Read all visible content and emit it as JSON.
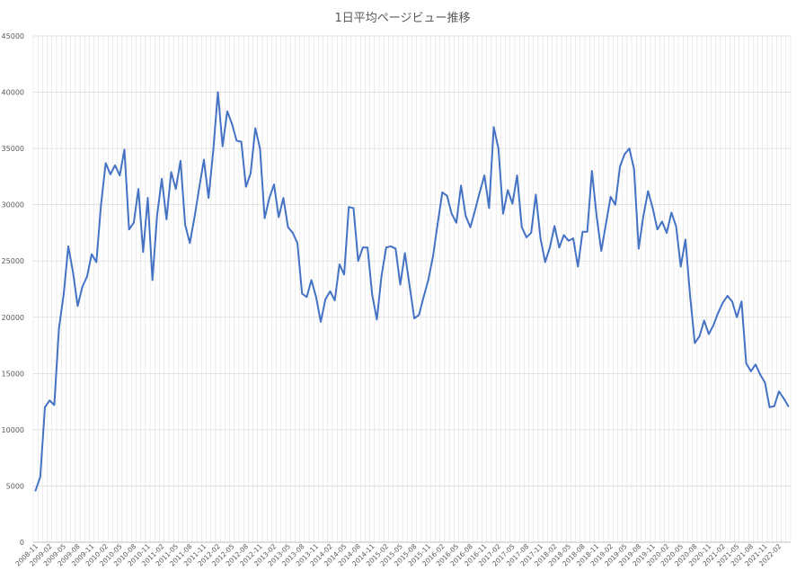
{
  "chart_data": {
    "type": "line",
    "title": "1日平均ページビュー推移",
    "xlabel": "",
    "ylabel": "",
    "ylim": [
      0,
      45000
    ],
    "yticks": [
      0,
      5000,
      10000,
      15000,
      20000,
      25000,
      30000,
      35000,
      40000,
      45000
    ],
    "grid": true,
    "legend": "none",
    "colors": {
      "line": "#4472c4",
      "grid": "#d9d9d9",
      "text": "#595959"
    },
    "x": [
      "2008-11",
      "2008-12",
      "2009-01",
      "2009-02",
      "2009-03",
      "2009-04",
      "2009-05",
      "2009-06",
      "2009-07",
      "2009-08",
      "2009-09",
      "2009-10",
      "2009-11",
      "2009-12",
      "2010-01",
      "2010-02",
      "2010-03",
      "2010-04",
      "2010-05",
      "2010-06",
      "2010-07",
      "2010-08",
      "2010-09",
      "2010-10",
      "2010-11",
      "2010-12",
      "2011-01",
      "2011-02",
      "2011-03",
      "2011-04",
      "2011-05",
      "2011-06",
      "2011-07",
      "2011-08",
      "2011-09",
      "2011-10",
      "2011-11",
      "2011-12",
      "2012-01",
      "2012-02",
      "2012-03",
      "2012-04",
      "2012-05",
      "2012-06",
      "2012-07",
      "2012-08",
      "2012-09",
      "2012-10",
      "2012-11",
      "2012-12",
      "2013-01",
      "2013-02",
      "2013-03",
      "2013-04",
      "2013-05",
      "2013-06",
      "2013-07",
      "2013-08",
      "2013-09",
      "2013-10",
      "2013-11",
      "2013-12",
      "2014-01",
      "2014-02",
      "2014-03",
      "2014-04",
      "2014-05",
      "2014-06",
      "2014-07",
      "2014-08",
      "2014-09",
      "2014-10",
      "2014-11",
      "2014-12",
      "2015-01",
      "2015-02",
      "2015-03",
      "2015-04",
      "2015-05",
      "2015-06",
      "2015-07",
      "2015-08",
      "2015-09",
      "2015-10",
      "2015-11",
      "2015-12",
      "2016-01",
      "2016-02",
      "2016-03",
      "2016-04",
      "2016-05",
      "2016-06",
      "2016-07",
      "2016-08",
      "2016-09",
      "2016-10",
      "2016-11",
      "2016-12",
      "2017-01",
      "2017-02",
      "2017-03",
      "2017-04",
      "2017-05",
      "2017-06",
      "2017-07",
      "2017-08",
      "2017-09",
      "2017-10",
      "2017-11",
      "2017-12",
      "2018-01",
      "2018-02",
      "2018-03",
      "2018-04",
      "2018-05",
      "2018-06",
      "2018-07",
      "2018-08",
      "2018-09",
      "2018-10",
      "2018-11",
      "2018-12",
      "2019-01",
      "2019-02",
      "2019-03",
      "2019-04",
      "2019-05",
      "2019-06",
      "2019-07",
      "2019-08",
      "2019-09",
      "2019-10",
      "2019-11",
      "2019-12",
      "2020-01",
      "2020-02",
      "2020-03",
      "2020-04",
      "2020-05",
      "2020-06",
      "2020-07",
      "2020-08",
      "2020-09",
      "2020-10",
      "2020-11",
      "2020-12",
      "2021-01",
      "2021-02",
      "2021-03",
      "2021-04",
      "2021-05",
      "2021-06",
      "2021-07",
      "2021-08",
      "2021-09",
      "2021-10",
      "2021-11",
      "2021-12",
      "2022-01",
      "2022-02",
      "2022-03",
      "2022-04"
    ],
    "tick_labels": [
      "2008-11",
      "2009-02",
      "2009-05",
      "2009-08",
      "2009-11",
      "2010-02",
      "2010-05",
      "2010-08",
      "2010-11",
      "2011-02",
      "2011-05",
      "2011-08",
      "2011-11",
      "2012-02",
      "2012-05",
      "2012-08",
      "2012-11",
      "2013-02",
      "2013-05",
      "2013-08",
      "2013-11",
      "2014-02",
      "2014-05",
      "2014-08",
      "2014-11",
      "2015-02",
      "2015-05",
      "2015-08",
      "2015-11",
      "2016-02",
      "2016-05",
      "2016-08",
      "2016-11",
      "2017-02",
      "2017-05",
      "2017-08",
      "2017-11",
      "2018-02",
      "2018-05",
      "2018-08",
      "2018-11",
      "2019-02",
      "2019-05",
      "2019-08",
      "2019-11",
      "2020-02",
      "2020-05",
      "2020-08",
      "2020-11",
      "2021-02",
      "2021-05",
      "2021-08",
      "2021-11",
      "2022-02"
    ],
    "series": [
      {
        "values": [
          4600,
          5800,
          12000,
          12600,
          12200,
          19000,
          22000,
          26300,
          24000,
          21000,
          22700,
          23600,
          25600,
          24900,
          30000,
          33700,
          32700,
          33500,
          32600,
          34900,
          27800,
          28400,
          31400,
          25800,
          30600,
          23300,
          29100,
          32300,
          28700,
          32900,
          31400,
          33900,
          28200,
          26600,
          28900,
          31500,
          34000,
          30600,
          34800,
          40000,
          35200,
          38300,
          37200,
          35700,
          35600,
          31600,
          32800,
          36800,
          35000,
          28800,
          30600,
          31800,
          28900,
          30600,
          28000,
          27500,
          26600,
          22100,
          21800,
          23300,
          21800,
          19600,
          21600,
          22300,
          21500,
          24700,
          23800,
          29800,
          29700,
          25000,
          26200,
          26200,
          22000,
          19800,
          23700,
          26200,
          26300,
          26100,
          22900,
          25700,
          22800,
          19900,
          20200,
          21800,
          23300,
          25400,
          28300,
          31100,
          30800,
          29200,
          28400,
          31700,
          29000,
          28000,
          29500,
          31100,
          32600,
          29700,
          36900,
          35000,
          29200,
          31300,
          30100,
          32600,
          28000,
          27100,
          27500,
          30900,
          27000,
          24900,
          26200,
          28100,
          26200,
          27300,
          26800,
          27000,
          24500,
          27600,
          27600,
          33000,
          29000,
          25900,
          28300,
          30700,
          30000,
          33400,
          34500,
          35000,
          33200,
          26100,
          29000,
          31200,
          29700,
          27800,
          28500,
          27500,
          29300,
          28100,
          24500,
          26900,
          21900,
          17700,
          18300,
          19700,
          18500,
          19300,
          20400,
          21300,
          21900,
          21400,
          20000,
          21400,
          15900,
          15200,
          15800,
          14900,
          14200,
          12000,
          12100,
          13400,
          12800,
          12100
        ]
      }
    ]
  }
}
